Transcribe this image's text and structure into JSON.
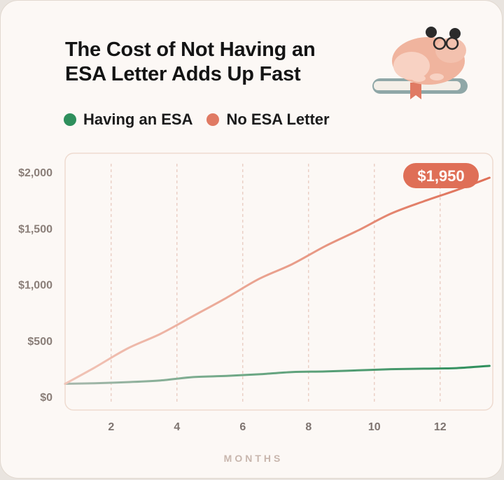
{
  "chart_data": {
    "type": "line",
    "title": "The Cost of Not Having an ESA Letter Adds Up Fast",
    "xlabel": "MONTHS",
    "ylabel": "",
    "x_ticks": [
      2,
      4,
      6,
      8,
      10,
      12
    ],
    "y_ticks": [
      "$0",
      "$500",
      "$1,000",
      "$1,500",
      "$2,000"
    ],
    "y_tick_values": [
      0,
      500,
      1000,
      1500,
      2000
    ],
    "xlim": [
      0.6,
      13.6
    ],
    "ylim": [
      0,
      2000
    ],
    "grid": "vertical dashed",
    "legend_position": "top-left",
    "x": [
      0.6,
      1.5,
      2.5,
      3.5,
      4.5,
      5.5,
      6.5,
      7.5,
      8.5,
      9.5,
      10.5,
      11.5,
      12.5,
      13.5
    ],
    "series": [
      {
        "name": "Having an ESA",
        "color": "#2e8f5c",
        "values": [
          115,
          120,
          130,
          145,
          175,
          185,
          200,
          220,
          225,
          235,
          245,
          250,
          255,
          275
        ]
      },
      {
        "name": "No ESA Letter",
        "color": "#e07a63",
        "values": [
          115,
          260,
          430,
          560,
          720,
          880,
          1050,
          1180,
          1340,
          1480,
          1630,
          1740,
          1840,
          1950
        ]
      }
    ],
    "annotation": "$1,950"
  },
  "legend": {
    "items": [
      {
        "label": "Having an ESA",
        "color": "#2e8f5c"
      },
      {
        "label": "No ESA Letter",
        "color": "#e07a63"
      }
    ]
  },
  "mascot": {
    "icon": "hamster-with-glasses-on-book-icon"
  }
}
